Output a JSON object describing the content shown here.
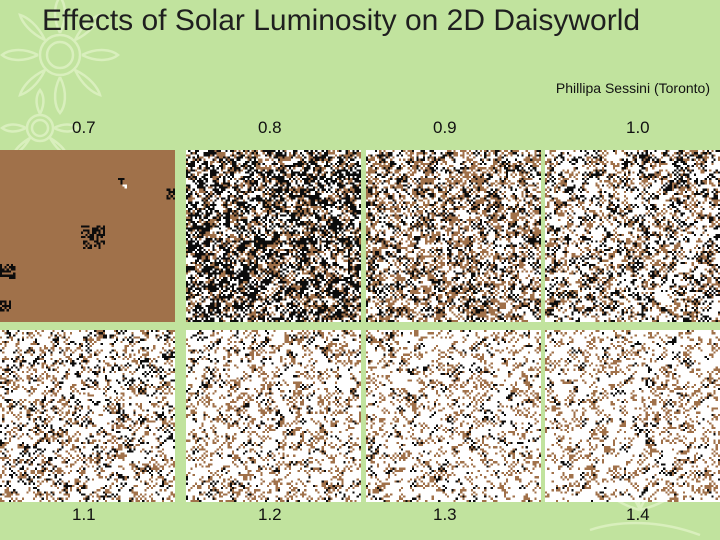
{
  "slide": {
    "title": "Effects of Solar Luminosity on 2D Daisyworld",
    "author": "Phillipa Sessini (Toronto)"
  },
  "panels": [
    {
      "label": "0.7",
      "row": 0,
      "col": 0
    },
    {
      "label": "0.8",
      "row": 0,
      "col": 1
    },
    {
      "label": "0.9",
      "row": 0,
      "col": 2
    },
    {
      "label": "1.0",
      "row": 0,
      "col": 3
    },
    {
      "label": "1.1",
      "row": 1,
      "col": 0
    },
    {
      "label": "1.2",
      "row": 1,
      "col": 1
    },
    {
      "label": "1.3",
      "row": 1,
      "col": 2
    },
    {
      "label": "1.4",
      "row": 1,
      "col": 3
    }
  ],
  "colors": {
    "background": "#c1e39e",
    "bare_ground": "#a0714a",
    "black_daisy": "#0c0c0c",
    "white_daisy": "#ffffff",
    "decoration": "#d7edb9"
  }
}
